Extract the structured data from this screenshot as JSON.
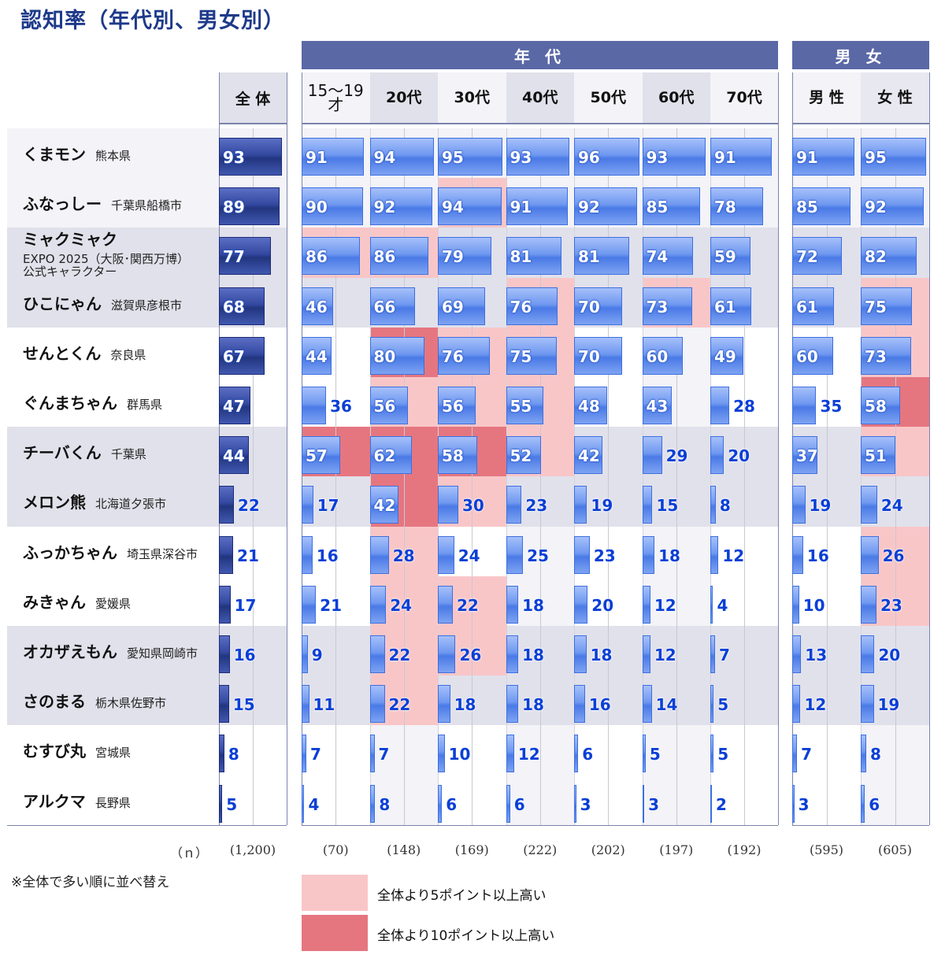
{
  "chart_data": {
    "type": "bar",
    "title": "認知率（年代別、男女別）",
    "groups": [
      {
        "label": "年 代",
        "columns": [
          0,
          1,
          2,
          3,
          4,
          5,
          6
        ]
      },
      {
        "label": "男 女",
        "columns": [
          7,
          8
        ]
      }
    ],
    "overall_label": "全 体",
    "columns": [
      "15〜19才",
      "20代",
      "30代",
      "40代",
      "50代",
      "60代",
      "70代",
      "男 性",
      "女 性"
    ],
    "n_label": "（ｎ）",
    "n_overall": "(1,200)",
    "n_values": [
      "(70)",
      "(148)",
      "(169)",
      "(222)",
      "(202)",
      "(197)",
      "(192)",
      "(595)",
      "(605)"
    ],
    "xlim": [
      0,
      100
    ],
    "rows": [
      {
        "name": "くまモン",
        "region": "熊本県",
        "overall": 93,
        "values": [
          91,
          94,
          95,
          93,
          96,
          93,
          91,
          91,
          95
        ],
        "highlight": [
          "",
          "",
          "",
          "",
          "",
          "",
          "",
          "",
          ""
        ]
      },
      {
        "name": "ふなっしー",
        "region": "千葉県船橋市",
        "overall": 89,
        "values": [
          90,
          92,
          94,
          91,
          92,
          85,
          78,
          85,
          92
        ],
        "highlight": [
          "",
          "",
          "p",
          "",
          "",
          "",
          "",
          "",
          ""
        ]
      },
      {
        "name": "ミャクミャク",
        "region": "",
        "sub": [
          "EXPO 2025（大阪･関西万博）",
          "公式キャラクター"
        ],
        "overall": 77,
        "values": [
          86,
          86,
          79,
          81,
          81,
          74,
          59,
          72,
          82
        ],
        "highlight": [
          "p",
          "p",
          "",
          "",
          "",
          "",
          "",
          "",
          ""
        ]
      },
      {
        "name": "ひこにゃん",
        "region": "滋賀県彦根市",
        "overall": 68,
        "values": [
          46,
          66,
          69,
          76,
          70,
          73,
          61,
          61,
          75
        ],
        "highlight": [
          "",
          "",
          "",
          "p",
          "",
          "p",
          "",
          "",
          "p"
        ]
      },
      {
        "name": "せんとくん",
        "region": "奈良県",
        "overall": 67,
        "values": [
          44,
          80,
          76,
          75,
          70,
          60,
          49,
          60,
          73
        ],
        "highlight": [
          "",
          "r",
          "p",
          "p",
          "",
          "",
          "",
          "",
          "p"
        ]
      },
      {
        "name": "ぐんまちゃん",
        "region": "群馬県",
        "overall": 47,
        "values": [
          36,
          56,
          56,
          55,
          48,
          43,
          28,
          35,
          58
        ],
        "highlight": [
          "",
          "p",
          "p",
          "p",
          "",
          "",
          "",
          "",
          "r"
        ]
      },
      {
        "name": "チーバくん",
        "region": "千葉県",
        "overall": 44,
        "values": [
          57,
          62,
          58,
          52,
          42,
          29,
          20,
          37,
          51
        ],
        "highlight": [
          "r",
          "r",
          "r",
          "p",
          "",
          "",
          "",
          "",
          "p"
        ]
      },
      {
        "name": "メロン熊",
        "region": "北海道夕張市",
        "overall": 22,
        "values": [
          17,
          42,
          30,
          23,
          19,
          15,
          8,
          19,
          24
        ],
        "highlight": [
          "",
          "r",
          "p",
          "",
          "",
          "",
          "",
          "",
          ""
        ]
      },
      {
        "name": "ふっかちゃん",
        "region": "埼玉県深谷市",
        "overall": 21,
        "values": [
          16,
          28,
          24,
          25,
          23,
          18,
          12,
          16,
          26
        ],
        "highlight": [
          "",
          "p",
          "",
          "",
          "",
          "",
          "",
          "",
          "p"
        ]
      },
      {
        "name": "みきゃん",
        "region": "愛媛県",
        "overall": 17,
        "values": [
          21,
          24,
          22,
          18,
          20,
          12,
          4,
          10,
          23
        ],
        "highlight": [
          "",
          "p",
          "p",
          "",
          "",
          "",
          "",
          "",
          "p"
        ]
      },
      {
        "name": "オカザえもん",
        "region": "愛知県岡崎市",
        "overall": 16,
        "values": [
          9,
          22,
          26,
          18,
          18,
          12,
          7,
          13,
          20
        ],
        "highlight": [
          "",
          "p",
          "p",
          "",
          "",
          "",
          "",
          "",
          ""
        ]
      },
      {
        "name": "さのまる",
        "region": "栃木県佐野市",
        "overall": 15,
        "values": [
          11,
          22,
          18,
          18,
          16,
          14,
          5,
          12,
          19
        ],
        "highlight": [
          "",
          "p",
          "",
          "",
          "",
          "",
          "",
          "",
          ""
        ]
      },
      {
        "name": "むすび丸",
        "region": "宮城県",
        "overall": 8,
        "values": [
          7,
          7,
          10,
          12,
          6,
          5,
          5,
          7,
          8
        ],
        "highlight": [
          "",
          "",
          "",
          "",
          "",
          "",
          "",
          "",
          ""
        ]
      },
      {
        "name": "アルクマ",
        "region": "長野県",
        "overall": 5,
        "values": [
          4,
          8,
          6,
          6,
          3,
          3,
          2,
          3,
          6
        ],
        "highlight": [
          "",
          "",
          "",
          "",
          "",
          "",
          "",
          "",
          ""
        ]
      }
    ],
    "footnote": "※全体で多い順に並べ替え",
    "legend": [
      {
        "label": "全体より5ポイント以上高い",
        "color": "#f9c6c8"
      },
      {
        "label": "全体より10ポイント以上高い",
        "color": "#e57680"
      }
    ]
  }
}
